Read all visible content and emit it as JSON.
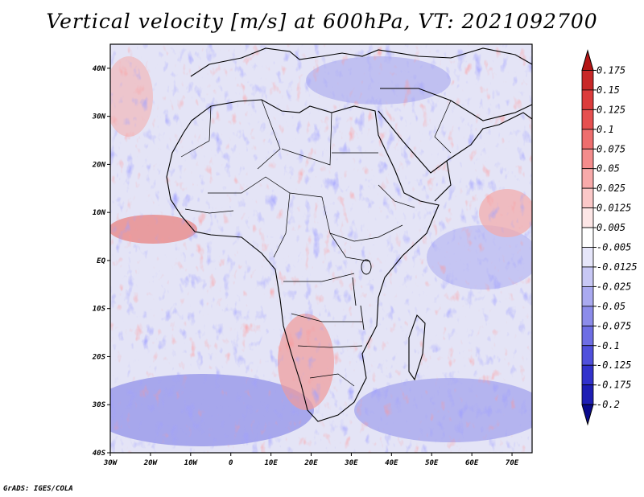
{
  "title": "Vertical velocity [m/s] at 600hPa, VT: 2021092700",
  "credit": "GrADS: IGES/COLA",
  "map": {
    "lon_labels": [
      "30W",
      "20W",
      "10W",
      "0",
      "10E",
      "20E",
      "30E",
      "40E",
      "50E",
      "60E",
      "70E"
    ],
    "lat_labels": [
      "40N",
      "30N",
      "20N",
      "10N",
      "EQ",
      "10S",
      "20S",
      "30S",
      "40S"
    ],
    "lon_range": [
      -30,
      75
    ],
    "lat_range": [
      -40,
      45
    ]
  },
  "colorbar": {
    "labels": [
      "0.175",
      "0.15",
      "0.125",
      "0.1",
      "0.075",
      "0.05",
      "0.025",
      "0.0125",
      "0.005",
      "-0.005",
      "-0.0125",
      "-0.025",
      "-0.05",
      "-0.075",
      "-0.1",
      "-0.125",
      "-0.175",
      "-0.2"
    ],
    "colors": [
      "#b41414",
      "#c82828",
      "#dc3c3c",
      "#e65050",
      "#ee6e6e",
      "#f48c8c",
      "#f8aaaa",
      "#fbc8c8",
      "#fde6e6",
      "#ffffff",
      "#e6e6fa",
      "#c8c8f5",
      "#aaaaf0",
      "#8c8cea",
      "#6e6ee4",
      "#5050dc",
      "#3232cc",
      "#1e1eb4",
      "#0a0a8c"
    ]
  }
}
